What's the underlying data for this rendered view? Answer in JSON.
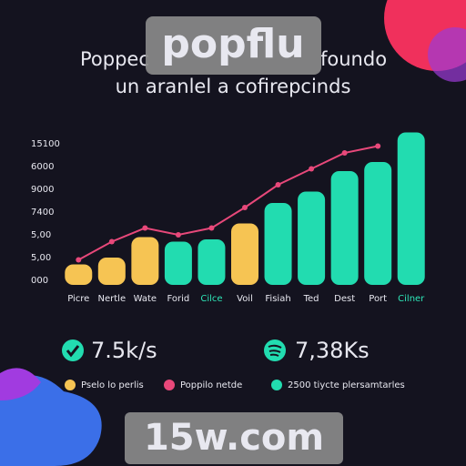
{
  "chart_data": {
    "type": "bar",
    "title_left": "Poppec",
    "title_right": "foundo",
    "subtitle": "un aranlel a cofirepcinds",
    "categories": [
      "Picre",
      "Nertle",
      "Wate",
      "Forid",
      "Cilce",
      "Voil",
      "Fisiah",
      "Ted",
      "Dest",
      "Port",
      "Cilner"
    ],
    "category_colors": [
      "#e8e8f0",
      "#e8e8f0",
      "#e8e8f0",
      "#e8e8f0",
      "#2ee6b8",
      "#e8e8f0",
      "#e8e8f0",
      "#e8e8f0",
      "#e8e8f0",
      "#e8e8f0",
      "#2ee6b8"
    ],
    "series": [
      {
        "type": "bar",
        "colors": [
          "#f6c453",
          "#f6c453",
          "#f6c453",
          "#22dcb0",
          "#22dcb0",
          "#f6c453",
          "#22dcb0",
          "#22dcb0",
          "#22dcb0",
          "#22dcb0",
          "#22dcb0"
        ],
        "values": [
          0.7,
          1.0,
          1.9,
          1.7,
          1.8,
          2.5,
          3.4,
          3.9,
          4.8,
          5.2,
          6.5
        ]
      },
      {
        "type": "line",
        "color": "#e8487a",
        "values": [
          0.9,
          1.7,
          2.3,
          2.0,
          2.3,
          3.2,
          4.2,
          4.9,
          5.6,
          5.9,
          null
        ]
      }
    ],
    "ylim": [
      0,
      7
    ],
    "yticks": [
      {
        "value": 0,
        "label": "000"
      },
      {
        "value": 1,
        "label": "5,00"
      },
      {
        "value": 2,
        "label": "5,00"
      },
      {
        "value": 3,
        "label": "7400"
      },
      {
        "value": 4,
        "label": "9000"
      },
      {
        "value": 5,
        "label": "6000"
      },
      {
        "value": 6,
        "label": "15100"
      }
    ],
    "stats": [
      {
        "label": "7.5k/s"
      },
      {
        "label": "7,38Ks"
      }
    ],
    "legend": [
      {
        "label": "Pselo lo perlis",
        "color": "#f6c453"
      },
      {
        "label": "Poppilo netde",
        "color": "#e8487a"
      },
      {
        "label": "2500 tiycte plersamtarles",
        "color": "#22dcb0"
      }
    ],
    "watermarks": [
      "popflu",
      "15w.com"
    ]
  }
}
